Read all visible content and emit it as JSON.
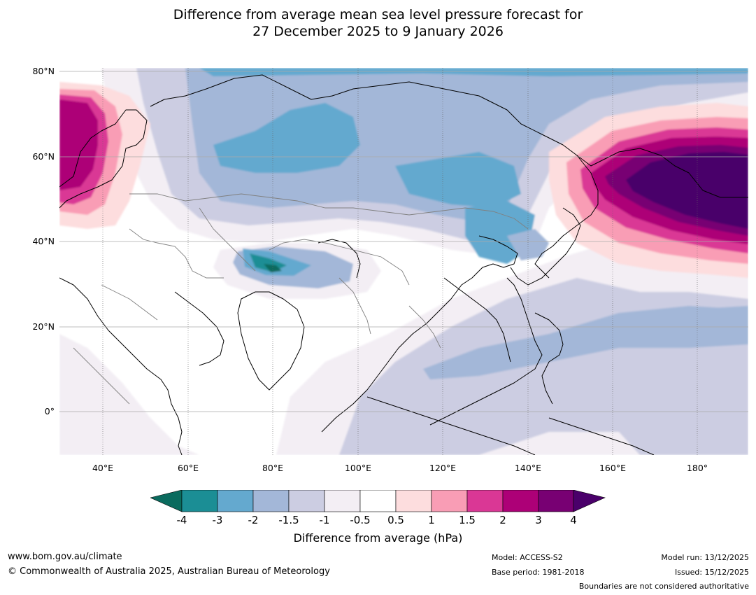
{
  "title": {
    "line1": "Difference from average mean sea level pressure forecast for",
    "line2": "27 December 2025 to 9 January 2026"
  },
  "axes": {
    "lat_labels": [
      "80°N",
      "60°N",
      "40°N",
      "20°N",
      "0°"
    ],
    "lon_labels": [
      "40°E",
      "60°E",
      "80°E",
      "100°E",
      "120°E",
      "140°E",
      "160°E",
      "180°"
    ]
  },
  "colorbar": {
    "label": "Difference from average (hPa)",
    "ticks": [
      "-4",
      "-3",
      "-2",
      "-1.5",
      "-1",
      "-0.5",
      "0.5",
      "1",
      "1.5",
      "2",
      "3",
      "4"
    ],
    "colors": [
      "#0a6b5e",
      "#1b8e95",
      "#64a9cf",
      "#a3b7d8",
      "#cccde2",
      "#f3eef4",
      "#ffffff",
      "#fdddde",
      "#f99db5",
      "#da3795",
      "#ad0077",
      "#780073",
      "#4a006a"
    ]
  },
  "footer": {
    "website": "www.bom.gov.au/climate",
    "copyright": "© Commonwealth of Australia 2025, Australian Bureau of Meteorology",
    "model": "Model: ACCESS-S2",
    "base_period": "Base period: 1981-2018",
    "model_run": "Model run: 13/12/2025",
    "issued": "Issued: 15/12/2025",
    "disclaimer": "Boundaries are not considered authoritative"
  }
}
